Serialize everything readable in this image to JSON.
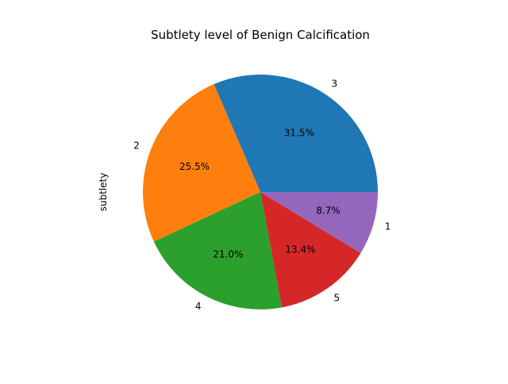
{
  "chart_data": {
    "type": "pie",
    "title": "Subtlety level of Benign Calcification",
    "ylabel": "subtlety",
    "categories": [
      "3",
      "2",
      "4",
      "5",
      "1"
    ],
    "values": [
      31.5,
      25.5,
      21.0,
      13.4,
      8.7
    ],
    "percent_labels": [
      "31.5%",
      "25.5%",
      "21.0%",
      "13.4%",
      "8.7%"
    ],
    "colors": [
      "#1f77b4",
      "#ff7f0e",
      "#2ca02c",
      "#d62728",
      "#9467bd"
    ],
    "start_angle_deg": 0,
    "direction": "counterclockwise",
    "legend": false
  }
}
